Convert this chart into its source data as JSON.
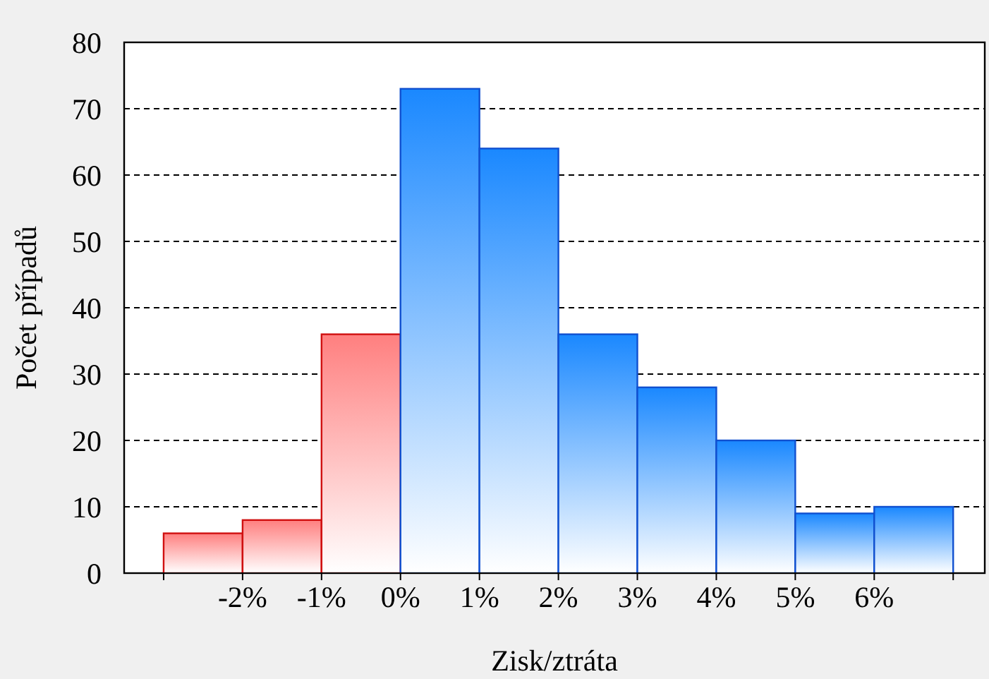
{
  "chart_data": {
    "type": "histogram",
    "xlabel": "Zisk/ztráta",
    "ylabel": "Počet případů",
    "bins": [
      -3,
      -2,
      -1,
      0,
      1,
      2,
      3,
      4,
      5,
      6,
      7
    ],
    "values": [
      6,
      8,
      36,
      73,
      64,
      36,
      28,
      20,
      9,
      10
    ],
    "colors": [
      "#ff7f7f",
      "#ff7f7f",
      "#ff7f7f",
      "#1a88ff",
      "#1a88ff",
      "#1a88ff",
      "#1a88ff",
      "#1a88ff",
      "#1a88ff",
      "#1a88ff"
    ],
    "xlim": [
      -3.5,
      7.4
    ],
    "xticks": [
      {
        "value": -3,
        "label": null
      },
      {
        "value": -2,
        "label": "-2%"
      },
      {
        "value": -1,
        "label": "-1%"
      },
      {
        "value": 0,
        "label": "0%"
      },
      {
        "value": 1,
        "label": "1%"
      },
      {
        "value": 2,
        "label": "2%"
      },
      {
        "value": 3,
        "label": "3%"
      },
      {
        "value": 4,
        "label": "4%"
      },
      {
        "value": 5,
        "label": "5%"
      },
      {
        "value": 6,
        "label": "6%"
      },
      {
        "value": 7,
        "label": null
      }
    ],
    "ylim": [
      0,
      80
    ],
    "yticks": [
      0,
      10,
      20,
      30,
      40,
      50,
      60,
      70,
      80
    ],
    "grid": "y"
  }
}
